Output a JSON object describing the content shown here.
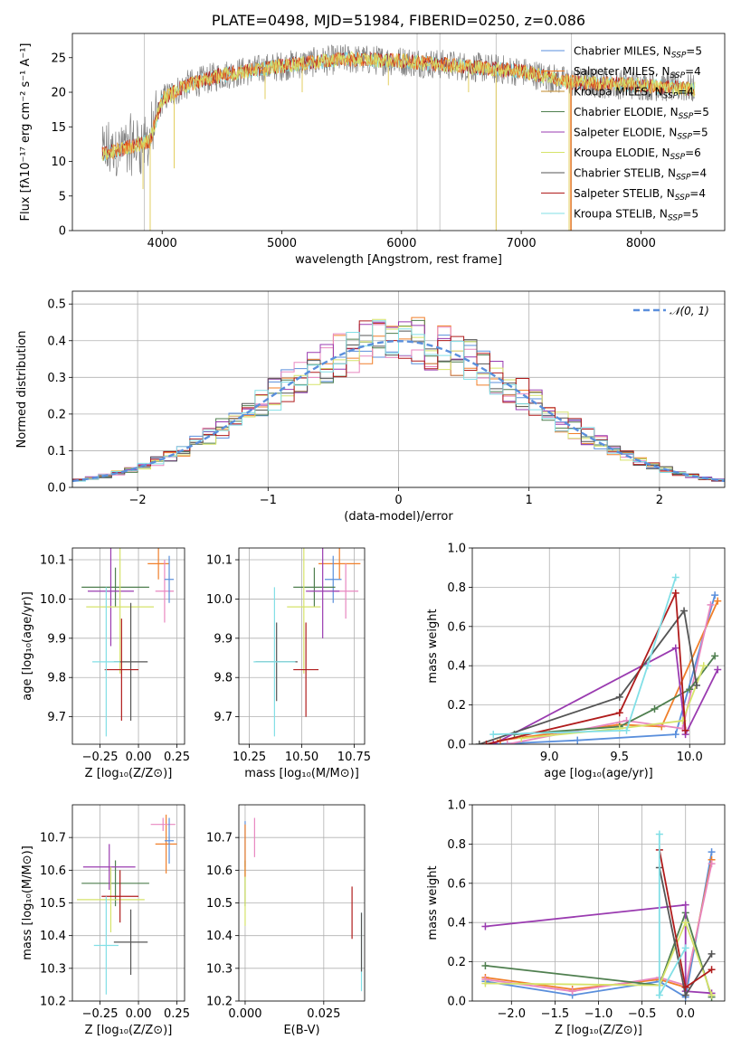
{
  "palette": [
    "#5a8fdc",
    "#f07f2a",
    "#e887c0",
    "#e0e04f",
    "#9aa3b3",
    "#4f7f4f",
    "#9a3bb0",
    "#d6e36a",
    "#555555",
    "#b01c1c",
    "#82dfe6"
  ],
  "chart_data": [
    {
      "id": "spectrum",
      "type": "line",
      "title": "PLATE=0498, MJD=51984, FIBERID=0250, z=0.086",
      "xlabel": "wavelength [Angstrom, rest frame]",
      "ylabel": "Flux [fλ10⁻¹⁷ erg cm⁻² s⁻¹ A⁻¹]",
      "xlim": [
        3250,
        8700
      ],
      "ylim": [
        0,
        28.5
      ],
      "xticks": [
        4000,
        5000,
        6000,
        7000,
        8000
      ],
      "yticks": [
        0,
        5,
        10,
        15,
        20,
        25
      ],
      "legend": [
        {
          "text": "Chabrier MILES, N",
          "sub": "SSP",
          "tail": "=5",
          "color": "#5a8fdc"
        },
        {
          "text": "Salpeter MILES, N",
          "sub": "SSP",
          "tail": "=4",
          "color": "#f07f2a"
        },
        {
          "text": "Kroupa MILES, N",
          "sub": "SSP",
          "tail": "=4",
          "color": "#c08a2a"
        },
        {
          "text": "Chabrier ELODIE, N",
          "sub": "SSP",
          "tail": "=5",
          "color": "#4f7f4f"
        },
        {
          "text": "Salpeter ELODIE, N",
          "sub": "SSP",
          "tail": "=5",
          "color": "#9a3bb0"
        },
        {
          "text": "Kroupa ELODIE, N",
          "sub": "SSP",
          "tail": "=6",
          "color": "#d6e36a"
        },
        {
          "text": "Chabrier STELIB, N",
          "sub": "SSP",
          "tail": "=4",
          "color": "#555555"
        },
        {
          "text": "Salpeter STELIB, N",
          "sub": "SSP",
          "tail": "=4",
          "color": "#b01c1c"
        },
        {
          "text": "Kroupa STELIB, N",
          "sub": "SSP",
          "tail": "=5",
          "color": "#82dfe6"
        }
      ],
      "continuum_knots": [
        [
          3500,
          11
        ],
        [
          3700,
          12
        ],
        [
          3900,
          13
        ],
        [
          4000,
          19
        ],
        [
          4200,
          21
        ],
        [
          4500,
          22.5
        ],
        [
          5000,
          23.8
        ],
        [
          5500,
          24.8
        ],
        [
          6000,
          24.5
        ],
        [
          6500,
          23.8
        ],
        [
          7000,
          23
        ],
        [
          7400,
          21.5
        ],
        [
          8000,
          21
        ],
        [
          8450,
          20.5
        ]
      ],
      "spikes": [
        [
          3850,
          0
        ],
        [
          6130,
          0
        ],
        [
          6320,
          0
        ],
        [
          6790,
          0
        ],
        [
          7420,
          0
        ]
      ]
    },
    {
      "id": "residuals",
      "type": "bar",
      "xlabel": "(data-model)/error",
      "ylabel": "Normed distribution",
      "xlim": [
        -2.5,
        2.5
      ],
      "ylim": [
        0,
        0.535
      ],
      "xticks": [
        -2,
        -1,
        0,
        1,
        2
      ],
      "yticks": [
        0.0,
        0.1,
        0.2,
        0.3,
        0.4,
        0.5
      ],
      "legend_label": "𝒩(0, 1)",
      "bin_width": 0.1,
      "series_colors": [
        "#5a8fdc",
        "#f07f2a",
        "#e887c0",
        "#4f7f4f",
        "#9a3bb0",
        "#d6e36a",
        "#555555",
        "#b01c1c",
        "#82dfe6"
      ]
    },
    {
      "id": "age_vs_Z",
      "type": "scatter",
      "xlabel": "Z [log₁₀(Z/Z⊙)]",
      "ylabel": "age  [log₁₀(age/yr)]",
      "xlim": [
        -0.43,
        0.3
      ],
      "ylim": [
        9.63,
        10.13
      ],
      "xticks": [
        -0.25,
        0.0,
        0.25
      ],
      "yticks": [
        9.7,
        9.8,
        9.9,
        10.0,
        10.1
      ],
      "points": [
        {
          "x": 0.13,
          "y": 10.09,
          "xerr": 0.07,
          "yerr": 0.04,
          "color": "#f07f2a"
        },
        {
          "x": 0.17,
          "y": 10.02,
          "xerr": 0.06,
          "yerr": 0.08,
          "color": "#e887c0"
        },
        {
          "x": 0.2,
          "y": 10.05,
          "xerr": 0.03,
          "yerr": 0.06,
          "color": "#5a8fdc"
        },
        {
          "x": -0.15,
          "y": 10.03,
          "xerr": 0.22,
          "yerr": 0.05,
          "color": "#4f7f4f"
        },
        {
          "x": -0.18,
          "y": 10.02,
          "xerr": 0.15,
          "yerr": 0.14,
          "color": "#9a3bb0"
        },
        {
          "x": -0.12,
          "y": 9.98,
          "xerr": 0.22,
          "yerr": 0.17,
          "color": "#d6e36a"
        },
        {
          "x": -0.05,
          "y": 9.84,
          "xerr": 0.11,
          "yerr": 0.15,
          "color": "#555555"
        },
        {
          "x": -0.11,
          "y": 9.82,
          "xerr": 0.11,
          "yerr": 0.13,
          "color": "#b01c1c"
        },
        {
          "x": -0.21,
          "y": 9.84,
          "xerr": 0.09,
          "yerr": 0.19,
          "color": "#82dfe6"
        }
      ]
    },
    {
      "id": "age_vs_mass",
      "type": "scatter",
      "xlabel": "mass [log₁₀(M/M⊙)]",
      "ylabel": "",
      "xlim": [
        10.2,
        10.8
      ],
      "ylim": [
        9.63,
        10.13
      ],
      "xticks": [
        10.25,
        10.5,
        10.75
      ],
      "yticks": [
        9.7,
        9.8,
        9.9,
        10.0,
        10.1
      ],
      "points": [
        {
          "x": 10.68,
          "y": 10.09,
          "xerr": 0.1,
          "yerr": 0.04,
          "color": "#f07f2a"
        },
        {
          "x": 10.71,
          "y": 10.02,
          "xerr": 0.06,
          "yerr": 0.07,
          "color": "#e887c0"
        },
        {
          "x": 10.65,
          "y": 10.05,
          "xerr": 0.04,
          "yerr": 0.06,
          "color": "#5a8fdc"
        },
        {
          "x": 10.56,
          "y": 10.03,
          "xerr": 0.1,
          "yerr": 0.05,
          "color": "#4f7f4f"
        },
        {
          "x": 10.6,
          "y": 10.02,
          "xerr": 0.08,
          "yerr": 0.12,
          "color": "#9a3bb0"
        },
        {
          "x": 10.51,
          "y": 9.98,
          "xerr": 0.08,
          "yerr": 0.17,
          "color": "#d6e36a"
        },
        {
          "x": 10.38,
          "y": 9.84,
          "xerr": 0.1,
          "yerr": 0.1,
          "color": "#555555"
        },
        {
          "x": 10.52,
          "y": 9.82,
          "xerr": 0.06,
          "yerr": 0.12,
          "color": "#b01c1c"
        },
        {
          "x": 10.37,
          "y": 9.84,
          "xerr": 0.1,
          "yerr": 0.19,
          "color": "#82dfe6"
        }
      ]
    },
    {
      "id": "weight_vs_age",
      "type": "line",
      "xlabel": "age  [log₁₀(age/yr)]",
      "ylabel": "mass weight",
      "xlim": [
        8.45,
        10.25
      ],
      "ylim": [
        0,
        1.0
      ],
      "xticks": [
        9.0,
        9.5,
        10.0
      ],
      "yticks": [
        0.0,
        0.2,
        0.4,
        0.6,
        0.8,
        1.0
      ],
      "series": [
        {
          "color": "#5a8fdc",
          "x": [
            8.6,
            9.2,
            9.9,
            10.18
          ],
          "y": [
            0.0,
            0.02,
            0.05,
            0.76
          ]
        },
        {
          "color": "#f07f2a",
          "x": [
            8.65,
            9.5,
            9.8,
            10.2
          ],
          "y": [
            0.02,
            0.1,
            0.09,
            0.73
          ]
        },
        {
          "color": "#e887c0",
          "x": [
            8.7,
            9.55,
            9.95,
            10.15
          ],
          "y": [
            0.0,
            0.12,
            0.08,
            0.71
          ]
        },
        {
          "color": "#4f7f4f",
          "x": [
            8.75,
            9.5,
            9.75,
            10.0,
            10.18
          ],
          "y": [
            0.05,
            0.09,
            0.18,
            0.28,
            0.45
          ]
        },
        {
          "color": "#9a3bb0",
          "x": [
            8.6,
            9.9,
            9.97,
            10.2
          ],
          "y": [
            0.0,
            0.49,
            0.05,
            0.38
          ]
        },
        {
          "color": "#d6e36a",
          "x": [
            8.8,
            9.5,
            9.95,
            10.1
          ],
          "y": [
            0.03,
            0.08,
            0.12,
            0.4
          ]
        },
        {
          "color": "#555555",
          "x": [
            8.5,
            9.5,
            9.96,
            10.05
          ],
          "y": [
            0.0,
            0.24,
            0.68,
            0.3
          ]
        },
        {
          "color": "#b01c1c",
          "x": [
            8.55,
            9.5,
            9.9,
            9.97
          ],
          "y": [
            0.0,
            0.16,
            0.77,
            0.07
          ]
        },
        {
          "color": "#82dfe6",
          "x": [
            8.6,
            9.55,
            9.7,
            9.9
          ],
          "y": [
            0.05,
            0.07,
            0.4,
            0.85
          ]
        }
      ]
    },
    {
      "id": "mass_vs_Z",
      "type": "scatter",
      "xlabel": "Z [log₁₀(Z/Z⊙)]",
      "ylabel": "mass [log₁₀(M/M⊙)]",
      "xlim": [
        -0.43,
        0.3
      ],
      "ylim": [
        10.2,
        10.8
      ],
      "xticks": [
        -0.25,
        0.0,
        0.25
      ],
      "yticks": [
        10.2,
        10.3,
        10.4,
        10.5,
        10.6,
        10.7
      ],
      "points": [
        {
          "x": 0.18,
          "y": 10.68,
          "xerr": 0.07,
          "yerr": 0.09,
          "color": "#f07f2a"
        },
        {
          "x": 0.16,
          "y": 10.74,
          "xerr": 0.08,
          "yerr": 0.02,
          "color": "#e887c0"
        },
        {
          "x": 0.2,
          "y": 10.69,
          "xerr": 0.03,
          "yerr": 0.07,
          "color": "#5a8fdc"
        },
        {
          "x": -0.15,
          "y": 10.56,
          "xerr": 0.22,
          "yerr": 0.07,
          "color": "#4f7f4f"
        },
        {
          "x": -0.19,
          "y": 10.61,
          "xerr": 0.17,
          "yerr": 0.07,
          "color": "#9a3bb0"
        },
        {
          "x": -0.18,
          "y": 10.51,
          "xerr": 0.22,
          "yerr": 0.1,
          "color": "#d6e36a"
        },
        {
          "x": -0.05,
          "y": 10.38,
          "xerr": 0.11,
          "yerr": 0.1,
          "color": "#555555"
        },
        {
          "x": -0.12,
          "y": 10.52,
          "xerr": 0.12,
          "yerr": 0.08,
          "color": "#b01c1c"
        },
        {
          "x": -0.21,
          "y": 10.37,
          "xerr": 0.08,
          "yerr": 0.15,
          "color": "#82dfe6"
        }
      ]
    },
    {
      "id": "mass_vs_ebv",
      "type": "scatter",
      "xlabel": "E(B-V)",
      "ylabel": "",
      "xlim": [
        -0.002,
        0.038
      ],
      "ylim": [
        10.2,
        10.8
      ],
      "xticks": [
        0.0,
        0.025
      ],
      "yticks": [
        10.2,
        10.3,
        10.4,
        10.5,
        10.6,
        10.7
      ],
      "points": [
        {
          "x": 0.0,
          "y": 10.68,
          "xerr": 0.0,
          "yerr": 0.07,
          "color": "#5a8fdc"
        },
        {
          "x": 0.003,
          "y": 10.7,
          "xerr": 0.0,
          "yerr": 0.06,
          "color": "#e887c0"
        },
        {
          "x": 0.0,
          "y": 10.56,
          "xerr": 0.0,
          "yerr": 0.07,
          "color": "#4f7f4f"
        },
        {
          "x": 0.0,
          "y": 10.53,
          "xerr": 0.0,
          "yerr": 0.1,
          "color": "#d6e36a"
        },
        {
          "x": 0.0,
          "y": 10.66,
          "xerr": 0.0,
          "yerr": 0.08,
          "color": "#f07f2a"
        },
        {
          "x": 0.034,
          "y": 10.47,
          "xerr": 0.0,
          "yerr": 0.08,
          "color": "#b01c1c"
        },
        {
          "x": 0.037,
          "y": 10.35,
          "xerr": 0.0,
          "yerr": 0.12,
          "color": "#82dfe6"
        },
        {
          "x": 0.037,
          "y": 10.38,
          "xerr": 0.0,
          "yerr": 0.09,
          "color": "#555555"
        }
      ]
    },
    {
      "id": "weight_vs_Z",
      "type": "line",
      "xlabel": "Z [log₁₀(Z/Z⊙)]",
      "ylabel": "mass weight",
      "xlim": [
        -2.45,
        0.45
      ],
      "ylim": [
        0,
        1.0
      ],
      "xticks": [
        -2.0,
        -1.5,
        -1.0,
        -0.5,
        0.0
      ],
      "yticks": [
        0.0,
        0.2,
        0.4,
        0.6,
        0.8,
        1.0
      ],
      "series": [
        {
          "color": "#5a8fdc",
          "x": [
            -2.3,
            -1.3,
            -0.3,
            0.0,
            0.3
          ],
          "y": [
            0.1,
            0.03,
            0.1,
            0.02,
            0.76
          ]
        },
        {
          "color": "#f07f2a",
          "x": [
            -2.3,
            -1.3,
            -0.3,
            0.0,
            0.3
          ],
          "y": [
            0.12,
            0.06,
            0.11,
            0.07,
            0.72
          ]
        },
        {
          "color": "#e887c0",
          "x": [
            -2.3,
            -1.3,
            -0.3,
            0.0,
            0.3
          ],
          "y": [
            0.11,
            0.05,
            0.12,
            0.08,
            0.7
          ]
        },
        {
          "color": "#4f7f4f",
          "x": [
            -2.3,
            -0.3,
            0.0,
            0.3
          ],
          "y": [
            0.18,
            0.08,
            0.45,
            0.02
          ]
        },
        {
          "color": "#9a3bb0",
          "x": [
            -2.3,
            0.0,
            0.0,
            0.3
          ],
          "y": [
            0.38,
            0.49,
            0.05,
            0.04
          ]
        },
        {
          "color": "#d6e36a",
          "x": [
            -2.3,
            -0.3,
            0.0,
            0.3
          ],
          "y": [
            0.09,
            0.08,
            0.4,
            0.03
          ]
        },
        {
          "color": "#555555",
          "x": [
            -0.3,
            0.0,
            0.3
          ],
          "y": [
            0.68,
            0.03,
            0.24
          ]
        },
        {
          "color": "#b01c1c",
          "x": [
            -0.3,
            0.0,
            0.3
          ],
          "y": [
            0.77,
            0.07,
            0.16
          ]
        },
        {
          "color": "#82dfe6",
          "x": [
            -0.3,
            -0.3,
            0.0
          ],
          "y": [
            0.85,
            0.03,
            0.27
          ]
        }
      ]
    }
  ]
}
